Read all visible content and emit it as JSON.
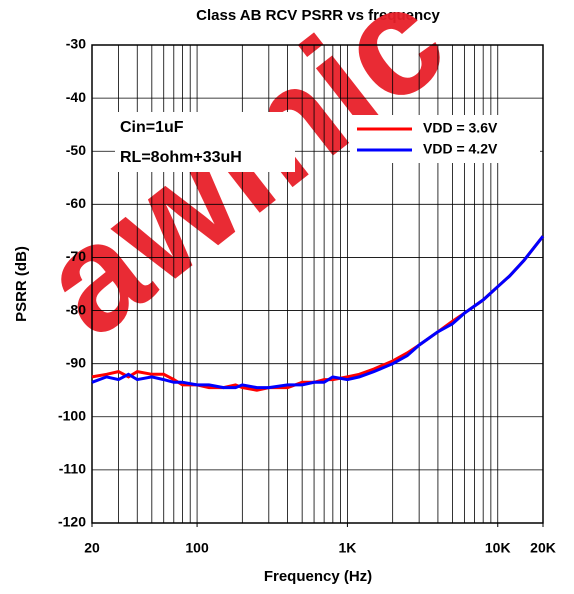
{
  "chart_data": {
    "type": "line",
    "title": "Class AB RCV PSRR vs frequency",
    "xlabel": "Frequency (Hz)",
    "ylabel": "PSRR (dB)",
    "watermark": "awinic",
    "annotations": [
      "Cin=1uF",
      "RL=8ohm+33uH"
    ],
    "x": [
      20,
      25,
      30,
      35,
      40,
      50,
      60,
      70,
      80,
      100,
      120,
      150,
      180,
      200,
      250,
      300,
      400,
      500,
      600,
      700,
      800,
      1000,
      1200,
      1500,
      2000,
      2500,
      3000,
      4000,
      5000,
      6000,
      8000,
      10000,
      12000,
      15000,
      20000
    ],
    "series": [
      {
        "name": "VDD = 3.6V",
        "color": "#ff0000",
        "values": [
          -92.5,
          -92,
          -91.5,
          -92.5,
          -91.5,
          -92,
          -92,
          -93,
          -94,
          -94,
          -94.5,
          -94.5,
          -94,
          -94.5,
          -95,
          -94.5,
          -94.5,
          -93.5,
          -93.5,
          -93,
          -93,
          -92.5,
          -92,
          -91,
          -89.5,
          -88,
          -86.5,
          -84,
          -82,
          -80.5,
          -78,
          -75.5,
          -73.5,
          -70.5,
          -66
        ]
      },
      {
        "name": "VDD = 4.2V",
        "color": "#0000ff",
        "values": [
          -93.5,
          -92.5,
          -93,
          -92,
          -93,
          -92.5,
          -93,
          -93.5,
          -93.5,
          -94,
          -94,
          -94.5,
          -94.5,
          -94,
          -94.5,
          -94.5,
          -94,
          -94,
          -93.5,
          -93.5,
          -92.5,
          -93,
          -92.5,
          -91.5,
          -90,
          -88.5,
          -86.5,
          -84,
          -82.5,
          -80.5,
          -78,
          -75.5,
          -73.5,
          -70.5,
          -66
        ]
      }
    ],
    "xscale": "log",
    "xlim": [
      20,
      20000
    ],
    "xticks": [
      20,
      100,
      {
        "value": 1000,
        "label": "1K"
      },
      {
        "value": 10000,
        "label": "10K"
      },
      {
        "value": 20000,
        "label": "20K"
      }
    ],
    "ylim": [
      -120,
      -30
    ],
    "yticks": [
      -120,
      -110,
      -100,
      -90,
      -80,
      -70,
      -60,
      -50,
      -40,
      -30
    ],
    "grid": true,
    "legend": "upper right"
  }
}
